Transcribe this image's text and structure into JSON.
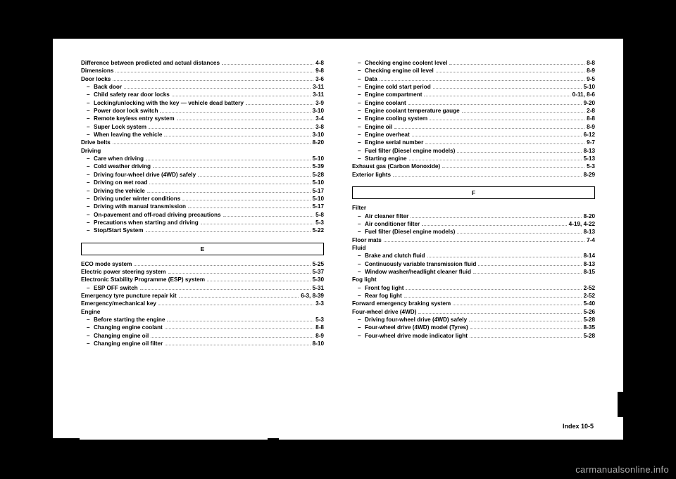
{
  "left_col": {
    "top": [
      {
        "label": "Difference between predicted and actual distances",
        "page": "4-8",
        "indent": false
      },
      {
        "label": "Dimensions",
        "page": "9-8",
        "indent": false
      },
      {
        "label": "Door locks",
        "page": "3-6",
        "indent": false
      },
      {
        "label": "Back door",
        "page": "3-11",
        "indent": true
      },
      {
        "label": "Child safety rear door locks",
        "page": "3-11",
        "indent": true
      },
      {
        "label": "Locking/unlocking with the key — vehicle dead battery",
        "page": "3-9",
        "indent": true
      },
      {
        "label": "Power door lock switch",
        "page": "3-10",
        "indent": true
      },
      {
        "label": "Remote keyless entry system",
        "page": "3-4",
        "indent": true
      },
      {
        "label": "Super Lock system",
        "page": "3-8",
        "indent": true
      },
      {
        "label": "When leaving the vehicle",
        "page": "3-10",
        "indent": true
      },
      {
        "label": "Drive belts",
        "page": "8-20",
        "indent": false
      },
      {
        "label": "Driving",
        "page": "",
        "indent": false,
        "nodots": true
      },
      {
        "label": "Care when driving",
        "page": "5-10",
        "indent": true
      },
      {
        "label": "Cold weather driving",
        "page": "5-39",
        "indent": true
      },
      {
        "label": "Driving four-wheel drive (4WD) safely",
        "page": "5-28",
        "indent": true
      },
      {
        "label": "Driving on wet road",
        "page": "5-10",
        "indent": true
      },
      {
        "label": "Driving the vehicle",
        "page": "5-17",
        "indent": true
      },
      {
        "label": "Driving under winter conditions",
        "page": "5-10",
        "indent": true
      },
      {
        "label": "Driving with manual transmission",
        "page": "5-17",
        "indent": true
      },
      {
        "label": "On-pavement and off-road driving precautions",
        "page": "5-8",
        "indent": true
      },
      {
        "label": "Precautions when starting and driving",
        "page": "5-3",
        "indent": true
      },
      {
        "label": "Stop/Start System",
        "page": "5-22",
        "indent": true
      }
    ],
    "section_e_label": "E",
    "bottom": [
      {
        "label": "ECO mode system",
        "page": "5-25",
        "indent": false
      },
      {
        "label": "Electric power steering system",
        "page": "5-37",
        "indent": false
      },
      {
        "label": "Electronic Stability Programme (ESP) system",
        "page": "5-30",
        "indent": false
      },
      {
        "label": "ESP OFF switch",
        "page": "5-31",
        "indent": true
      },
      {
        "label": "Emergency tyre puncture repair kit",
        "page": "6-3, 8-39",
        "indent": false
      },
      {
        "label": "Emergency/mechanical key",
        "page": "3-3",
        "indent": false
      },
      {
        "label": "Engine",
        "page": "",
        "indent": false,
        "nodots": true
      },
      {
        "label": "Before starting the engine",
        "page": "5-3",
        "indent": true
      },
      {
        "label": "Changing engine coolant",
        "page": "8-8",
        "indent": true
      },
      {
        "label": "Changing engine oil",
        "page": "8-9",
        "indent": true
      },
      {
        "label": "Changing engine oil filter",
        "page": "8-10",
        "indent": true
      }
    ]
  },
  "right_col": {
    "top": [
      {
        "label": "Checking engine coolent level",
        "page": "8-8",
        "indent": true
      },
      {
        "label": "Checking engine oil level",
        "page": "8-9",
        "indent": true
      },
      {
        "label": "Data",
        "page": "9-5",
        "indent": true
      },
      {
        "label": "Engine cold start period",
        "page": "5-10",
        "indent": true
      },
      {
        "label": "Engine compartment",
        "page": "0-11, 8-6",
        "indent": true
      },
      {
        "label": "Engine coolant",
        "page": "9-20",
        "indent": true
      },
      {
        "label": "Engine coolant temperature gauge",
        "page": "2-8",
        "indent": true
      },
      {
        "label": "Engine cooling system",
        "page": "8-8",
        "indent": true
      },
      {
        "label": "Engine oil",
        "page": "8-9",
        "indent": true
      },
      {
        "label": "Engine overheat",
        "page": "6-12",
        "indent": true
      },
      {
        "label": "Engine serial number",
        "page": "9-7",
        "indent": true
      },
      {
        "label": "Fuel filter (Diesel engine models)",
        "page": "8-13",
        "indent": true
      },
      {
        "label": "Starting engine",
        "page": "5-13",
        "indent": true
      },
      {
        "label": "Exhaust gas (Carbon Monoxide)",
        "page": "5-3",
        "indent": false
      },
      {
        "label": "Exterior lights",
        "page": "8-29",
        "indent": false
      }
    ],
    "section_f_label": "F",
    "bottom": [
      {
        "label": "Filter",
        "page": "",
        "indent": false,
        "nodots": true
      },
      {
        "label": "Air cleaner filter",
        "page": "8-20",
        "indent": true
      },
      {
        "label": "Air conditioner filter",
        "page": "4-19, 4-22",
        "indent": true
      },
      {
        "label": "Fuel filter (Diesel engine models)",
        "page": "8-13",
        "indent": true
      },
      {
        "label": "Floor mats",
        "page": "7-4",
        "indent": false
      },
      {
        "label": "Fluid",
        "page": "",
        "indent": false,
        "nodots": true
      },
      {
        "label": "Brake and clutch fluid",
        "page": "8-14",
        "indent": true
      },
      {
        "label": "Continuously variable transmission fluid",
        "page": "8-13",
        "indent": true
      },
      {
        "label": "Window washer/headlight cleaner fluid",
        "page": "8-15",
        "indent": true
      },
      {
        "label": "Fog light",
        "page": "",
        "indent": false,
        "nodots": true
      },
      {
        "label": "Front fog light",
        "page": "2-52",
        "indent": true
      },
      {
        "label": "Rear fog light",
        "page": "2-52",
        "indent": true
      },
      {
        "label": "Forward emergency braking system",
        "page": "5-40",
        "indent": false
      },
      {
        "label": "Four-wheel drive (4WD)",
        "page": "5-26",
        "indent": false
      },
      {
        "label": "Driving four-wheel drive (4WD) safely",
        "page": "5-28",
        "indent": true
      },
      {
        "label": "Four-wheel drive (4WD) model (Tyres)",
        "page": "8-35",
        "indent": true
      },
      {
        "label": "Four-wheel drive mode indicator light",
        "page": "5-28",
        "indent": true
      }
    ]
  },
  "footer": "Index   10-5",
  "watermark": "carmanualsonline.info"
}
